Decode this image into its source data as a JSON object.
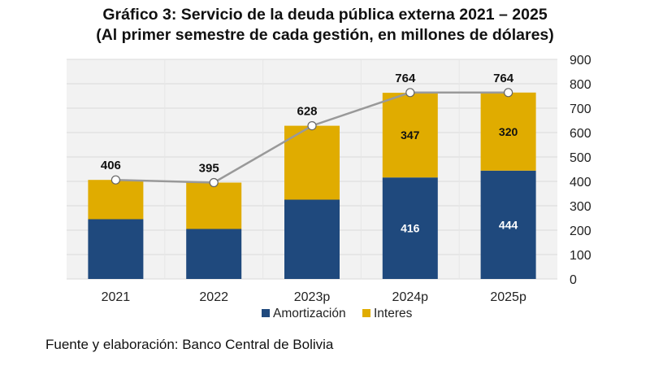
{
  "title_line1": "Gráfico 3: Servicio de la deuda pública externa 2021 – 2025",
  "title_line2": "(Al primer semestre de cada gestión, en millones de dólares)",
  "source": "Fuente y elaboración: Banco Central de Bolivia",
  "colors": {
    "amortizacion": "#1f497d",
    "interes": "#e0ac00",
    "line": "#999999",
    "plot_bg": "#f2f2f2",
    "grid": "#d9d9d9"
  },
  "chart_data": {
    "type": "bar",
    "stacked": true,
    "categories": [
      "2021",
      "2022",
      "2023p",
      "2024p",
      "2025p"
    ],
    "series": [
      {
        "name": "Amortización",
        "values": [
          245,
          205,
          325,
          416,
          444
        ]
      },
      {
        "name": "Interes",
        "values": [
          161,
          190,
          303,
          347,
          320
        ]
      }
    ],
    "totals": [
      406,
      395,
      628,
      764,
      764
    ],
    "segment_labels_amortizacion": [
      "",
      "",
      "",
      "416",
      "444"
    ],
    "segment_labels_interes": [
      "",
      "",
      "",
      "347",
      "320"
    ],
    "total_labels": [
      "406",
      "395",
      "628",
      "764",
      "764"
    ],
    "yticks": [
      "0",
      "100",
      "200",
      "300",
      "400",
      "500",
      "600",
      "700",
      "800",
      "900"
    ],
    "ylim": [
      0,
      900
    ],
    "y_axis_side": "right",
    "grid": true,
    "legend_position": "bottom",
    "legend": [
      "Amortización",
      "Interes"
    ]
  }
}
